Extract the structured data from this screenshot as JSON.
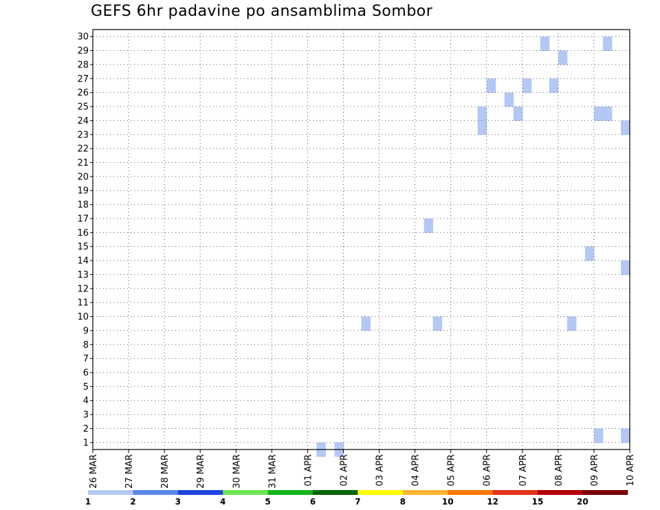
{
  "chart_data": {
    "type": "heatmap",
    "title": "GEFS 6hr padavine po ansamblima Sombor",
    "x_tick_labels": [
      "26 MAR",
      "27 MAR",
      "28 MAR",
      "29 MAR",
      "30 MAR",
      "31 MAR",
      "01 APR",
      "02 APR",
      "03 APR",
      "04 APR",
      "05 APR",
      "06 APR",
      "07 APR",
      "08 APR",
      "09 APR",
      "10 APR"
    ],
    "y_tick_labels": [
      "1",
      "2",
      "3",
      "4",
      "5",
      "6",
      "7",
      "8",
      "9",
      "10",
      "11",
      "12",
      "13",
      "14",
      "15",
      "16",
      "17",
      "18",
      "19",
      "20",
      "21",
      "22",
      "23",
      "24",
      "25",
      "26",
      "27",
      "28",
      "29",
      "30"
    ],
    "xlim": [
      0,
      60
    ],
    "ylim": [
      0.5,
      30.5
    ],
    "grid": true,
    "legend": {
      "placement": "bottom",
      "labels": [
        "1",
        "2",
        "3",
        "4",
        "5",
        "6",
        "7",
        "8",
        "10",
        "12",
        "15",
        "20"
      ],
      "colors": [
        "#b4c8f5",
        "#5a87eb",
        "#1e46dc",
        "#6ee650",
        "#14b414",
        "#006400",
        "#ffff00",
        "#ffb432",
        "#ff7800",
        "#e13214",
        "#b40000",
        "#780000"
      ]
    },
    "cells_note": "each cell: [x (6-hour step from 26 MAR 00Z), member, color class index 0-11]",
    "cells": [
      [
        25,
        0,
        0
      ],
      [
        27,
        0,
        0
      ],
      [
        30,
        9,
        0
      ],
      [
        37,
        16,
        0
      ],
      [
        38,
        9,
        0
      ],
      [
        53,
        9,
        0
      ],
      [
        55,
        14,
        0
      ],
      [
        56,
        1,
        0
      ],
      [
        59,
        1,
        0
      ],
      [
        43,
        24,
        0
      ],
      [
        43,
        23,
        0
      ],
      [
        44,
        26,
        0
      ],
      [
        46,
        25,
        0
      ],
      [
        47,
        24,
        0
      ],
      [
        48,
        26,
        0
      ],
      [
        50,
        29,
        0
      ],
      [
        51,
        26,
        0
      ],
      [
        52,
        28,
        0
      ],
      [
        57,
        29,
        0
      ],
      [
        56,
        24,
        0
      ],
      [
        57,
        24,
        0
      ],
      [
        59,
        23,
        0
      ],
      [
        59,
        13,
        0
      ]
    ]
  }
}
